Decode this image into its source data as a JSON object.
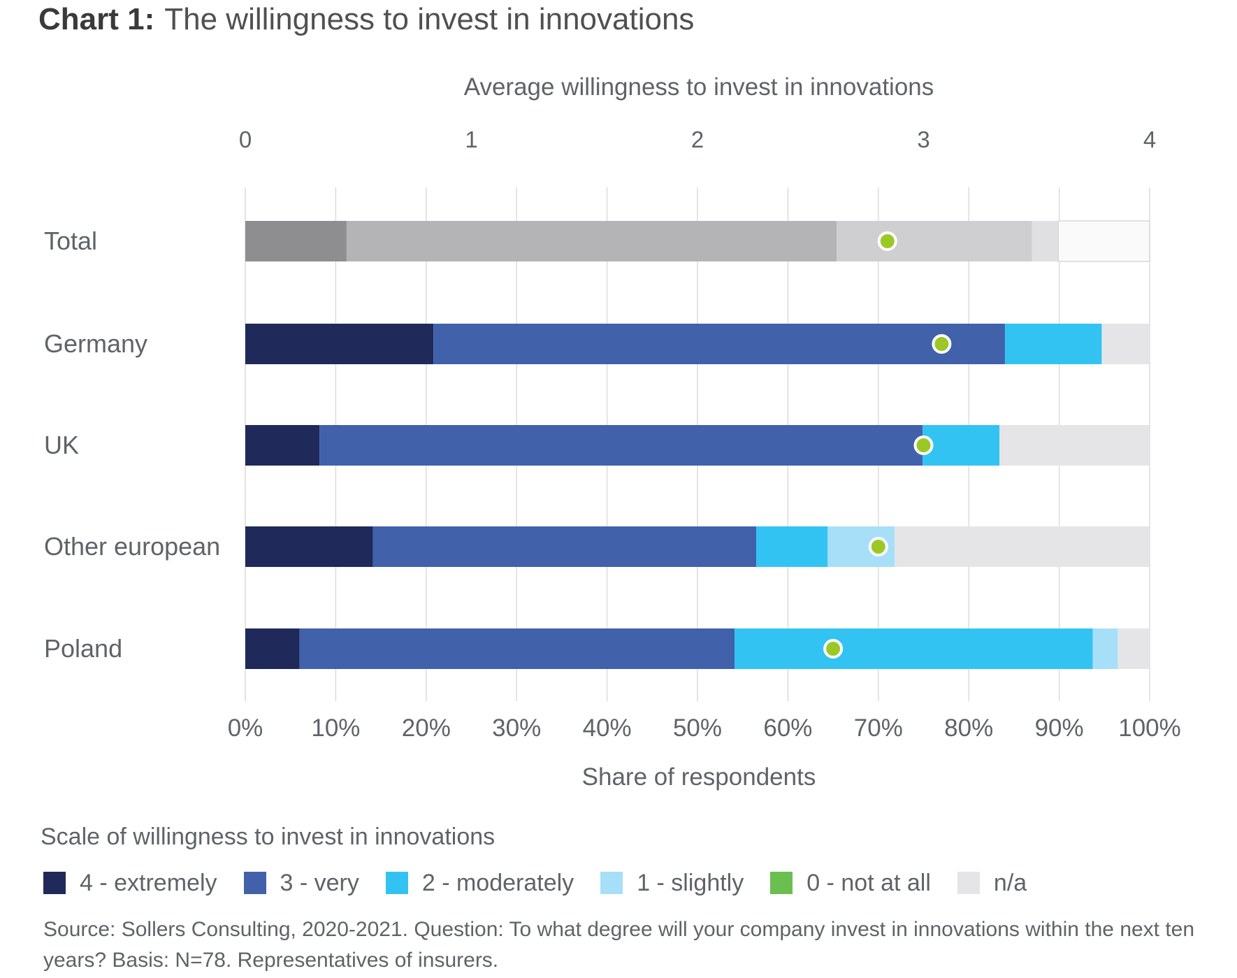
{
  "title": {
    "lead": "Chart 1:",
    "text": "The willingness to invest in innovations"
  },
  "chart_data": {
    "type": "bar",
    "orientation": "horizontal",
    "stacked": true,
    "title": "The willingness to invest in innovations",
    "top_axis": {
      "label": "Average willingness to invest in innovations",
      "range": [
        0,
        4
      ],
      "ticks": [
        "0",
        "1",
        "2",
        "3",
        "4"
      ]
    },
    "bottom_axis": {
      "label": "Share of respondents",
      "range": [
        0,
        100
      ],
      "ticks": [
        "0%",
        "10%",
        "20%",
        "30%",
        "40%",
        "50%",
        "60%",
        "70%",
        "80%",
        "90%",
        "100%"
      ]
    },
    "categories": [
      "Total",
      "Germany",
      "UK",
      "Other european",
      "Poland"
    ],
    "series": [
      {
        "name": "4 - extremely",
        "color": "#1f2a5a",
        "values": [
          11.2,
          20.8,
          8.2,
          14.1,
          6.0
        ]
      },
      {
        "name": "3 - very",
        "color": "#4161ab",
        "values": [
          54.2,
          63.2,
          66.7,
          42.4,
          48.1
        ]
      },
      {
        "name": "2 - moderately",
        "color": "#33c3f3",
        "values": [
          21.6,
          10.7,
          8.5,
          7.9,
          39.6
        ]
      },
      {
        "name": "1 - slightly",
        "color": "#a7dff8",
        "values": [
          2.9,
          0,
          0,
          7.4,
          2.8
        ]
      },
      {
        "name": "0 - not at all",
        "color": "#6bbf4e",
        "values": [
          0,
          0,
          0,
          0,
          0
        ]
      },
      {
        "name": "n/a",
        "color": "#e5e5e7",
        "values": [
          10.1,
          5.3,
          16.6,
          28.2,
          3.5
        ]
      }
    ],
    "total_colors": [
      "#8e8e90",
      "#b4b4b6",
      "#cfcfd1",
      "#e0e0e2",
      "#f0f0f0",
      "#fafafa"
    ],
    "average_marker": {
      "name": "Average willingness",
      "color": "#9cc827",
      "values": [
        2.84,
        3.08,
        3.0,
        2.8,
        2.6
      ]
    },
    "xlim": [
      0,
      100
    ],
    "grid": true
  },
  "legend": {
    "title": "Scale of willingness to invest in innovations"
  },
  "footer": {
    "source": "Source: Sollers Consulting, 2020-2021. Question: To what degree will your company invest in innovations within the next ten years? Basis: N=78. Representatives of insurers."
  }
}
